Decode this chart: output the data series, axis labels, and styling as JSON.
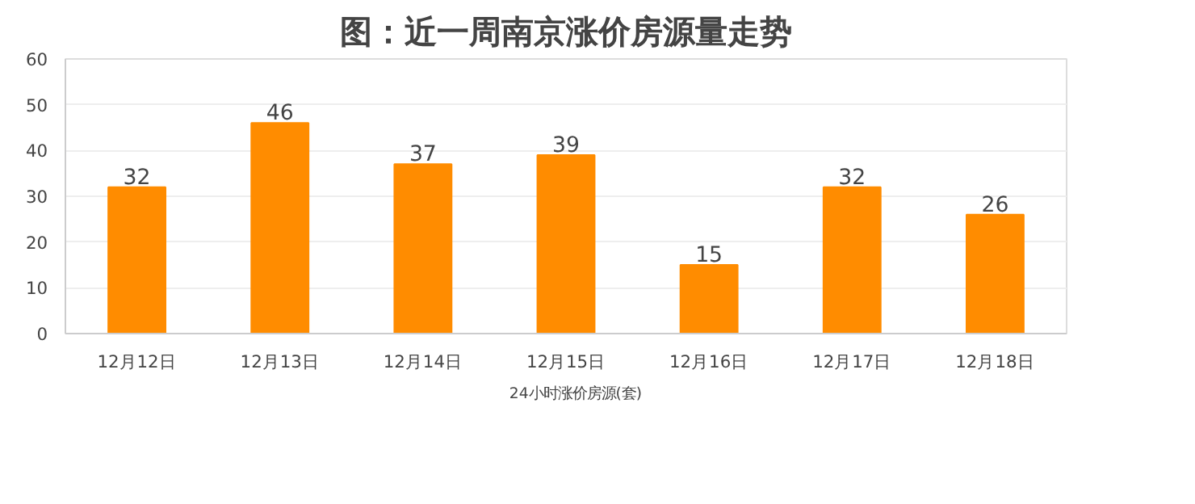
{
  "chart_data": {
    "type": "bar",
    "title": "图：近一周南京涨价房源量走势",
    "categories": [
      "12月12日",
      "12月13日",
      "12月14日",
      "12月15日",
      "12月16日",
      "12月17日",
      "12月18日"
    ],
    "series": [
      {
        "name": "24小时涨价房源(套)",
        "color": "#ff8c00",
        "values": [
          32,
          46,
          37,
          39,
          15,
          32,
          26
        ]
      }
    ],
    "ylim": [
      0,
      60
    ],
    "yticks": [
      0,
      10,
      20,
      30,
      40,
      50,
      60
    ],
    "grid": "y",
    "legend": "bottom",
    "data_labels": true
  }
}
